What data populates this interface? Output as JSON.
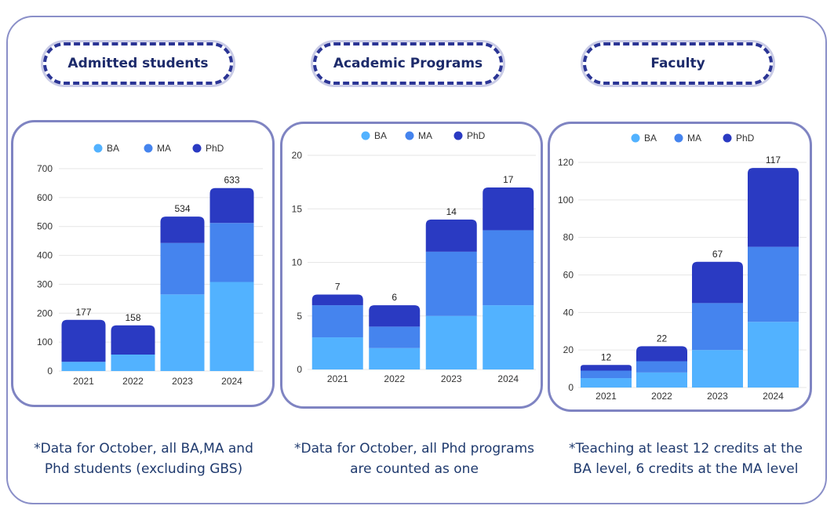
{
  "panels": [
    {
      "title": "Admitted students",
      "note_lines": [
        "*Data for October, all BA,MA and",
        "Phd students (excluding GBS)"
      ]
    },
    {
      "title": "Academic Programs",
      "note_lines": [
        "*Data for October, all Phd programs",
        "are counted as one"
      ]
    },
    {
      "title": "Faculty",
      "note_lines": [
        "*Teaching at least 12 credits at the",
        "BA level, 6 credits at the MA level"
      ]
    }
  ],
  "colors": {
    "BA": "#52b2ff",
    "MA": "#4584ee",
    "PhD": "#2a3ac2",
    "frame": "#7f84c2",
    "pill": "#2b3595"
  },
  "chart_data": [
    {
      "type": "bar",
      "stacked": true,
      "categories": [
        "2021",
        "2022",
        "2023",
        "2024"
      ],
      "series": [
        {
          "name": "BA",
          "values": [
            32,
            57,
            265,
            308
          ]
        },
        {
          "name": "MA",
          "values": [
            0,
            0,
            178,
            204
          ]
        },
        {
          "name": "PhD",
          "values": [
            145,
            101,
            91,
            121
          ]
        }
      ],
      "totals": [
        177,
        158,
        534,
        633
      ],
      "yticks": [
        0,
        100,
        200,
        300,
        400,
        500,
        600,
        700
      ],
      "ylim": [
        0,
        700
      ],
      "legend": "top"
    },
    {
      "type": "bar",
      "stacked": true,
      "categories": [
        "2021",
        "2022",
        "2023",
        "2024"
      ],
      "series": [
        {
          "name": "BA",
          "values": [
            3,
            2,
            5,
            6
          ]
        },
        {
          "name": "MA",
          "values": [
            3,
            2,
            6,
            7
          ]
        },
        {
          "name": "PhD",
          "values": [
            1,
            2,
            3,
            4
          ]
        }
      ],
      "totals": [
        7,
        6,
        14,
        17
      ],
      "yticks": [
        0,
        5,
        10,
        15,
        20
      ],
      "ylim": [
        0,
        20
      ],
      "legend": "top"
    },
    {
      "type": "bar",
      "stacked": true,
      "categories": [
        "2021",
        "2022",
        "2023",
        "2024"
      ],
      "series": [
        {
          "name": "BA",
          "values": [
            5,
            8,
            20,
            35
          ]
        },
        {
          "name": "MA",
          "values": [
            4,
            6,
            25,
            40
          ]
        },
        {
          "name": "PhD",
          "values": [
            3,
            8,
            22,
            42
          ]
        }
      ],
      "totals": [
        12,
        22,
        67,
        117
      ],
      "yticks": [
        0,
        20,
        40,
        60,
        80,
        100,
        120
      ],
      "ylim": [
        0,
        120
      ],
      "legend": "top"
    }
  ]
}
